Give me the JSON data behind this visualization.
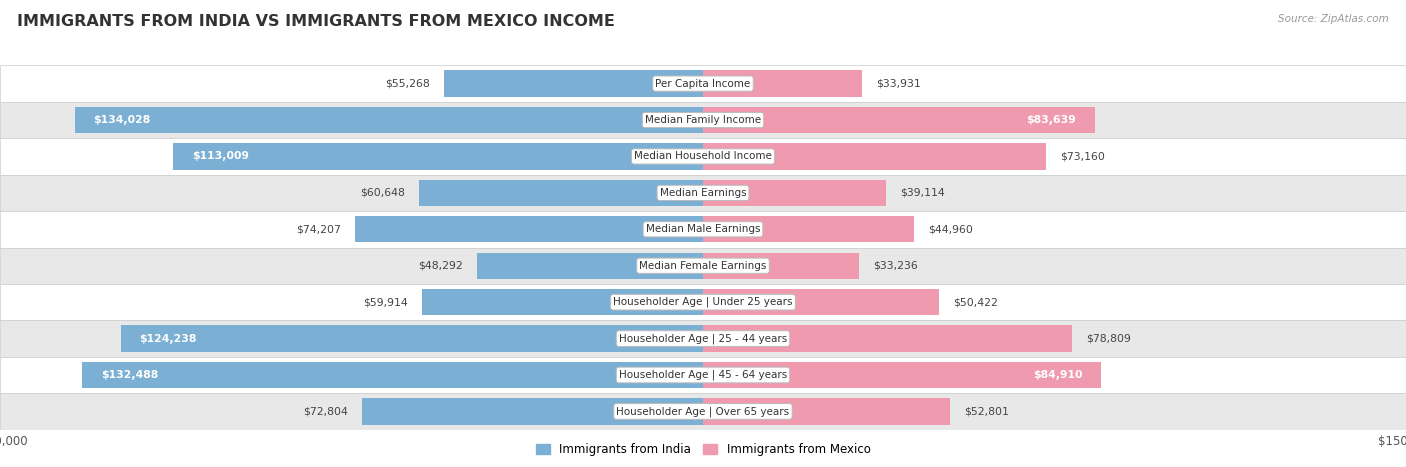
{
  "title": "IMMIGRANTS FROM INDIA VS IMMIGRANTS FROM MEXICO INCOME",
  "source": "Source: ZipAtlas.com",
  "categories": [
    "Per Capita Income",
    "Median Family Income",
    "Median Household Income",
    "Median Earnings",
    "Median Male Earnings",
    "Median Female Earnings",
    "Householder Age | Under 25 years",
    "Householder Age | 25 - 44 years",
    "Householder Age | 45 - 64 years",
    "Householder Age | Over 65 years"
  ],
  "india_values": [
    55268,
    134028,
    113009,
    60648,
    74207,
    48292,
    59914,
    124238,
    132488,
    72804
  ],
  "mexico_values": [
    33931,
    83639,
    73160,
    39114,
    44960,
    33236,
    50422,
    78809,
    84910,
    52801
  ],
  "india_labels": [
    "$55,268",
    "$134,028",
    "$113,009",
    "$60,648",
    "$74,207",
    "$48,292",
    "$59,914",
    "$124,238",
    "$132,488",
    "$72,804"
  ],
  "mexico_labels": [
    "$33,931",
    "$83,639",
    "$73,160",
    "$39,114",
    "$44,960",
    "$33,236",
    "$50,422",
    "$78,809",
    "$84,910",
    "$52,801"
  ],
  "india_color": "#7bafd4",
  "mexico_color": "#f09ab0",
  "xlim": 150000,
  "bar_height": 0.72,
  "row_bg_light": "#ffffff",
  "row_bg_dark": "#e8e8e8",
  "row_border": "#cccccc",
  "india_label_threshold": 80000,
  "mexico_label_threshold": 80000,
  "legend_india": "Immigrants from India",
  "legend_mexico": "Immigrants from Mexico"
}
